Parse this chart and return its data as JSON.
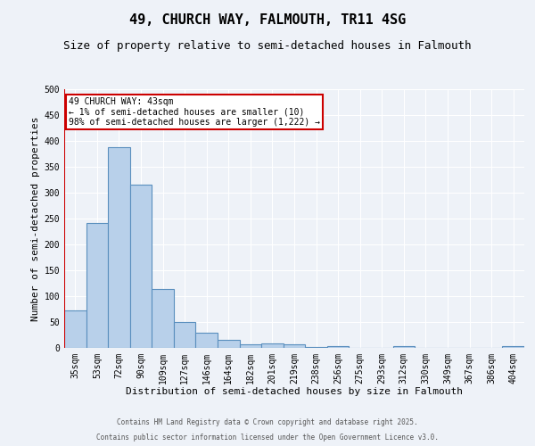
{
  "title": "49, CHURCH WAY, FALMOUTH, TR11 4SG",
  "subtitle": "Size of property relative to semi-detached houses in Falmouth",
  "xlabel": "Distribution of semi-detached houses by size in Falmouth",
  "ylabel": "Number of semi-detached properties",
  "categories": [
    "35sqm",
    "53sqm",
    "72sqm",
    "90sqm",
    "109sqm",
    "127sqm",
    "146sqm",
    "164sqm",
    "182sqm",
    "201sqm",
    "219sqm",
    "238sqm",
    "256sqm",
    "275sqm",
    "293sqm",
    "312sqm",
    "330sqm",
    "349sqm",
    "367sqm",
    "386sqm",
    "404sqm"
  ],
  "values": [
    72,
    242,
    388,
    315,
    113,
    50,
    30,
    15,
    7,
    9,
    7,
    2,
    3,
    0,
    0,
    4,
    0,
    0,
    0,
    0,
    4
  ],
  "bar_color": "#b8d0ea",
  "bar_edge_color": "#5a8fbe",
  "annotation_text": "49 CHURCH WAY: 43sqm\n← 1% of semi-detached houses are smaller (10)\n98% of semi-detached houses are larger (1,222) →",
  "annotation_box_color": "#ffffff",
  "annotation_box_edge_color": "#cc0000",
  "ylim": [
    0,
    500
  ],
  "yticks": [
    0,
    50,
    100,
    150,
    200,
    250,
    300,
    350,
    400,
    450,
    500
  ],
  "footer1": "Contains HM Land Registry data © Crown copyright and database right 2025.",
  "footer2": "Contains public sector information licensed under the Open Government Licence v3.0.",
  "bg_color": "#eef2f8",
  "plot_bg_color": "#eef2f8",
  "grid_color": "#ffffff",
  "red_line_color": "#cc0000",
  "title_fontsize": 11,
  "subtitle_fontsize": 9,
  "tick_fontsize": 7,
  "label_fontsize": 8,
  "footer_fontsize": 5.5,
  "annotation_fontsize": 7
}
